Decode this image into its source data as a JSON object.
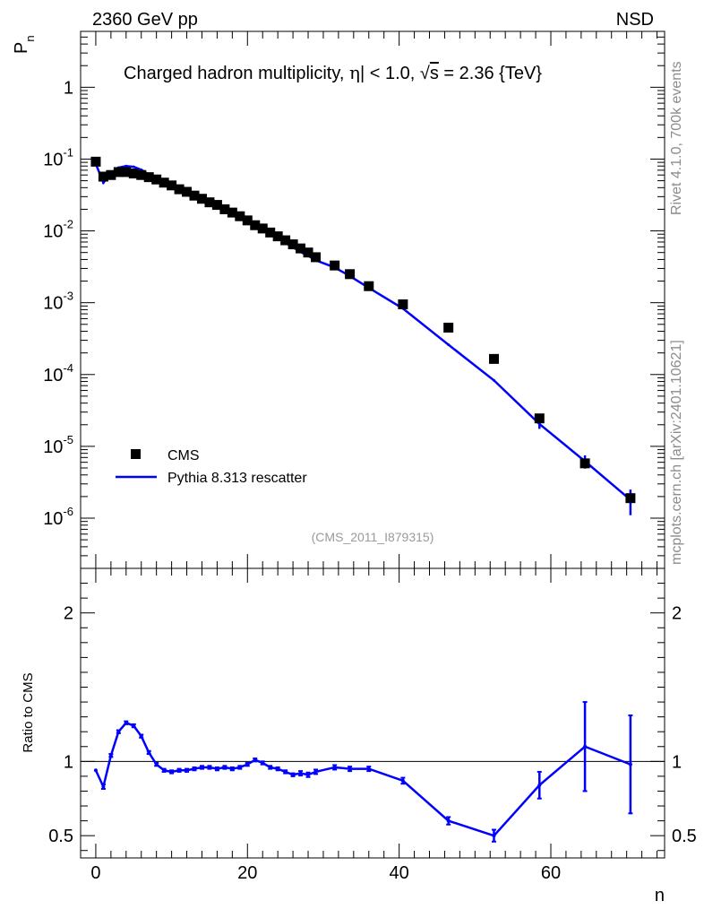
{
  "header": {
    "left": "2360 GeV pp",
    "right": "NSD"
  },
  "side_labels": {
    "rivet": "Rivet 4.1.0,  700k events",
    "mcplots": "mcplots.cern.ch [arXiv:2401.10621]"
  },
  "chart_data": [
    {
      "type": "scatter",
      "panel": "main",
      "title": "Charged hadron multiplicity, |η| < 1.0, √s = 2.36 {TeV}",
      "title_parts": {
        "prefix": "Charged hadron multiplicity, ",
        "eta": "η",
        "mid": "| < 1.0, ",
        "sqrt": "√",
        "s": "s",
        "suffix": " = 2.36 {TeV}"
      },
      "xlabel": "n",
      "ylabel": "P",
      "ylabel_sub": "n",
      "yscale": "log",
      "xlim": [
        -2,
        75
      ],
      "ylim": [
        2e-07,
        6
      ],
      "yticklabels": [
        {
          "base": "10",
          "exp": "-6",
          "value": 1e-06
        },
        {
          "base": "10",
          "exp": "-5",
          "value": 1e-05
        },
        {
          "base": "10",
          "exp": "-4",
          "value": 0.0001
        },
        {
          "base": "10",
          "exp": "-3",
          "value": 0.001
        },
        {
          "base": "10",
          "exp": "-2",
          "value": 0.01
        },
        {
          "base": "10",
          "exp": "-1",
          "value": 0.1
        },
        {
          "base": "1",
          "exp": "",
          "value": 1
        }
      ],
      "watermark": "(CMS_2011_I879315)",
      "legend": {
        "position": "bottom-left",
        "entries": [
          "CMS",
          "Pythia 8.313 rescatter"
        ]
      },
      "series": [
        {
          "name": "CMS",
          "style": "markers",
          "x": [
            0,
            1,
            2,
            3,
            4,
            5,
            6,
            7,
            8,
            9,
            10,
            11,
            12,
            13,
            14,
            15,
            16,
            17,
            18,
            19,
            20,
            21,
            22,
            23,
            24,
            25,
            26,
            27,
            28,
            29,
            31.5,
            33.5,
            36,
            40.5,
            46.5,
            52.5,
            58.5,
            64.5,
            70.5
          ],
          "y": [
            0.092,
            0.057,
            0.06,
            0.066,
            0.066,
            0.063,
            0.06,
            0.056,
            0.052,
            0.047,
            0.043,
            0.038,
            0.035,
            0.031,
            0.028,
            0.025,
            0.023,
            0.02,
            0.018,
            0.016,
            0.014,
            0.012,
            0.0108,
            0.0095,
            0.0084,
            0.0074,
            0.0065,
            0.0057,
            0.005,
            0.0043,
            0.0033,
            0.0025,
            0.0017,
            0.00095,
            0.00045,
            0.000165,
            2.45e-05,
            5.8e-06,
            1.9e-06
          ]
        },
        {
          "name": "Pythia 8.313 rescatter",
          "style": "line",
          "color": "#0000ff",
          "x": [
            0,
            1,
            2,
            3,
            4,
            5,
            6,
            7,
            8,
            9,
            10,
            11,
            12,
            13,
            14,
            15,
            16,
            17,
            18,
            19,
            20,
            21,
            22,
            23,
            24,
            25,
            26,
            27,
            28,
            29,
            31.5,
            33.5,
            36,
            40.5,
            46.5,
            52.5,
            58.5,
            64.5,
            70.5
          ],
          "y": [
            0.086,
            0.047,
            0.062,
            0.076,
            0.08,
            0.078,
            0.071,
            0.061,
            0.051,
            0.045,
            0.04,
            0.0355,
            0.032,
            0.029,
            0.027,
            0.024,
            0.022,
            0.0193,
            0.0174,
            0.0155,
            0.0136,
            0.0124,
            0.011,
            0.0094,
            0.008,
            0.0068,
            0.0059,
            0.0051,
            0.0045,
            0.0039,
            0.0031,
            0.00235,
            0.00161,
            0.00083,
            0.00026,
            8.3e-05,
            2.05e-05,
            6.2e-06,
            1.8e-06
          ],
          "yerr": [
            0,
            0,
            0,
            0,
            0,
            0,
            0,
            0,
            0,
            0,
            0,
            0,
            0,
            0,
            0,
            0,
            0,
            0,
            0,
            0,
            0,
            0,
            0,
            0,
            0,
            0,
            0,
            0,
            0,
            0,
            0,
            0,
            0,
            0,
            0,
            0,
            3e-06,
            1.3e-06,
            7e-07
          ]
        }
      ]
    },
    {
      "type": "line",
      "panel": "ratio",
      "ylabel": "Ratio to CMS",
      "xlabel": "n",
      "xlim": [
        -2,
        75
      ],
      "ylim": [
        0.35,
        2.3
      ],
      "yticks": [
        0.5,
        1,
        2
      ],
      "yticklabels": [
        "0.5",
        "1",
        "2"
      ],
      "xticks": [
        0,
        20,
        40,
        60
      ],
      "xticklabels": [
        "0",
        "20",
        "40",
        "60"
      ],
      "reference_line": 1,
      "series": [
        {
          "name": "Pythia 8.313 rescatter",
          "color": "#0000ff",
          "x": [
            0,
            1,
            2,
            3,
            4,
            5,
            6,
            7,
            8,
            9,
            10,
            11,
            12,
            13,
            14,
            15,
            16,
            17,
            18,
            19,
            20,
            21,
            22,
            23,
            24,
            25,
            26,
            27,
            28,
            29,
            31.5,
            33.5,
            36,
            40.5,
            46.5,
            52.5,
            58.5,
            64.5,
            70.5
          ],
          "y": [
            0.94,
            0.83,
            1.04,
            1.2,
            1.26,
            1.24,
            1.17,
            1.06,
            0.98,
            0.94,
            0.93,
            0.94,
            0.94,
            0.95,
            0.96,
            0.96,
            0.95,
            0.96,
            0.95,
            0.96,
            0.98,
            1.01,
            0.99,
            0.96,
            0.95,
            0.93,
            0.91,
            0.92,
            0.91,
            0.93,
            0.96,
            0.95,
            0.95,
            0.87,
            0.6,
            0.5,
            0.84,
            1.1,
            0.98
          ],
          "yerr": [
            0,
            0.015,
            0.01,
            0.01,
            0.01,
            0.01,
            0.01,
            0.01,
            0.01,
            0.01,
            0.01,
            0.01,
            0.01,
            0.01,
            0.01,
            0.01,
            0.01,
            0.01,
            0.01,
            0.01,
            0.01,
            0.01,
            0.01,
            0.01,
            0.01,
            0.01,
            0.01,
            0.015,
            0.015,
            0.015,
            0.015,
            0.015,
            0.015,
            0.02,
            0.025,
            0.04,
            0.09,
            0.3,
            0.33
          ]
        }
      ]
    }
  ]
}
